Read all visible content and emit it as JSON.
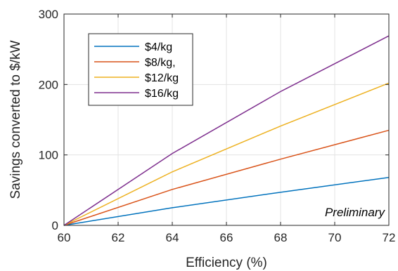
{
  "chart_data": {
    "type": "line",
    "xlabel": "Efficiency (%)",
    "ylabel": "Savings converted to $/kW",
    "xlim": [
      60,
      72
    ],
    "ylim": [
      0,
      300
    ],
    "xticks": [
      60,
      62,
      64,
      66,
      68,
      70,
      72
    ],
    "yticks": [
      0,
      100,
      200,
      300
    ],
    "grid": true,
    "legend_position": "top-left",
    "annotation": "Preliminary",
    "series": [
      {
        "name": "$4/kg",
        "color": "#0072BD",
        "x": [
          60,
          64,
          68,
          72
        ],
        "y": [
          0,
          25,
          47,
          68
        ]
      },
      {
        "name": "$8/kg,",
        "color": "#D95319",
        "x": [
          60,
          64,
          68,
          72
        ],
        "y": [
          0,
          51,
          94,
          135
        ]
      },
      {
        "name": "$12/kg",
        "color": "#EDB120",
        "x": [
          60,
          64,
          68,
          72
        ],
        "y": [
          0,
          76,
          141,
          202
        ]
      },
      {
        "name": "$16/kg",
        "color": "#7E2F8E",
        "x": [
          60,
          64,
          68,
          72
        ],
        "y": [
          0,
          102,
          190,
          269
        ]
      }
    ]
  }
}
